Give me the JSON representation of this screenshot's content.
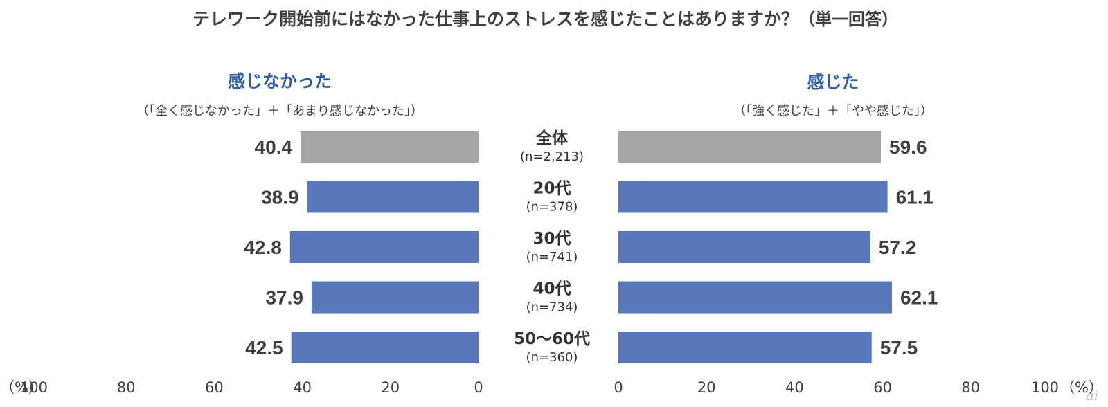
{
  "title": "テレワーク開始前にはなかった仕事上のストレスを感じたことはありますか？",
  "title_note": "（単一回答）",
  "left_header": "感じなかった",
  "left_subheader": "（「全く感じなかった」＋「あまり感じなかった」）",
  "right_header": "感じた",
  "right_subheader": "（「強く感じた」＋「やや感じた」）",
  "left_unit": "（%）",
  "right_unit": "（%）",
  "logo_text": "ai",
  "colors": {
    "total_bar": "#a6a6a6",
    "group_bar": "#5878bb",
    "header": "#2f5ca8",
    "text": "#404040"
  },
  "chart_data": {
    "type": "bar",
    "orientation": "horizontal-butterfly",
    "categories": [
      "全体",
      "20代",
      "30代",
      "40代",
      "50～60代"
    ],
    "category_n": [
      "(n=2,213)",
      "(n=378)",
      "(n=741)",
      "(n=734)",
      "(n=360)"
    ],
    "series": [
      {
        "name": "感じなかった",
        "side": "left",
        "values": [
          40.4,
          38.9,
          42.8,
          37.9,
          42.5
        ]
      },
      {
        "name": "感じた",
        "side": "right",
        "values": [
          59.6,
          61.1,
          57.2,
          62.1,
          57.5
        ]
      }
    ],
    "xlim": [
      0,
      100
    ],
    "left_ticks": [
      "100",
      "80",
      "60",
      "40",
      "20",
      "0"
    ],
    "right_ticks": [
      "0",
      "20",
      "40",
      "60",
      "80",
      "100"
    ],
    "grid": false,
    "legend": "none"
  }
}
